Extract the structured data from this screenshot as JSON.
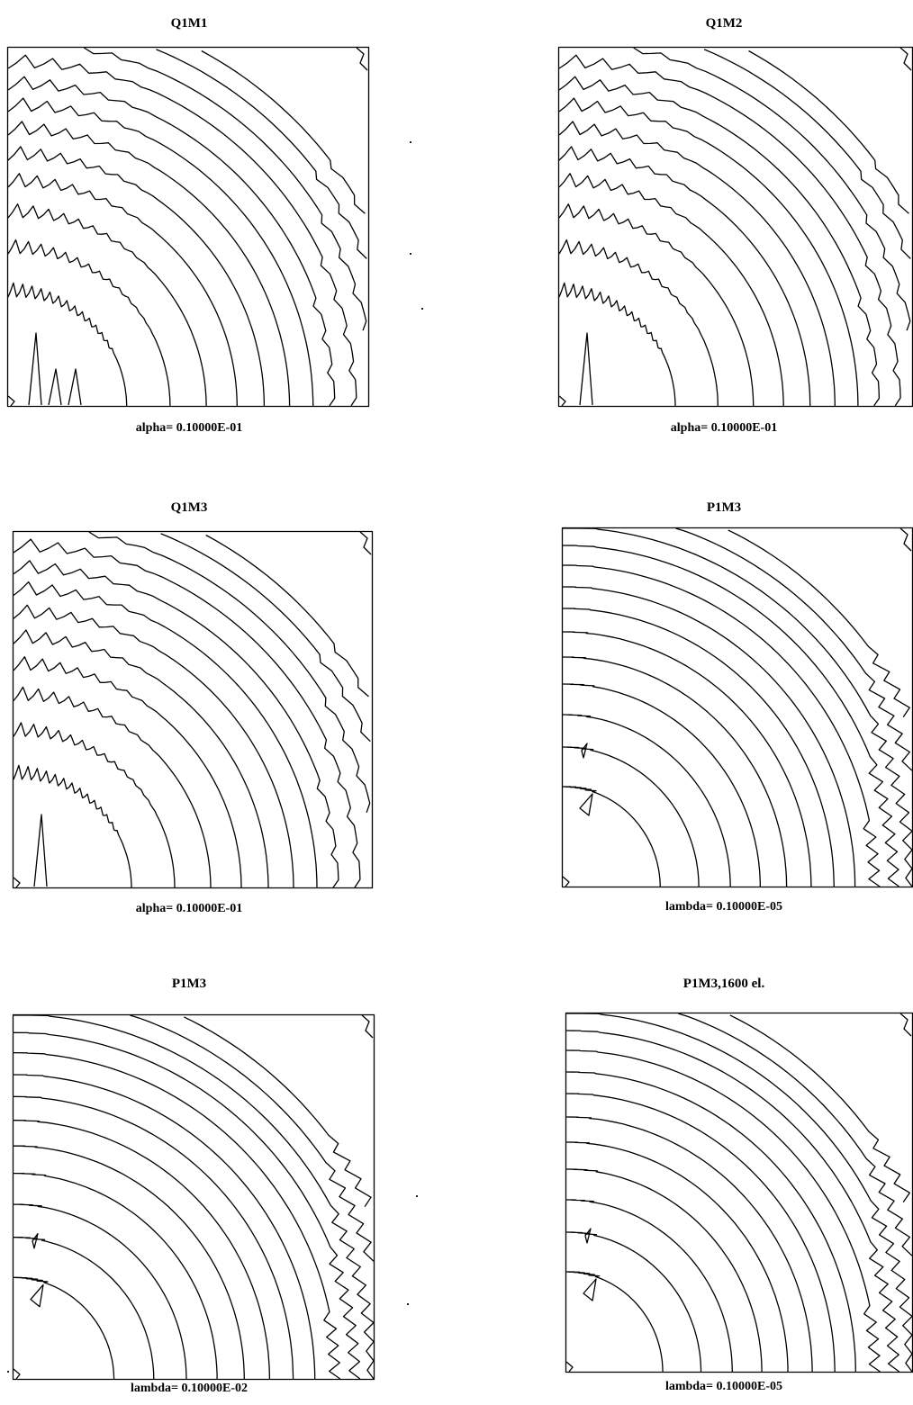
{
  "figure": {
    "panels": [
      {
        "title": "Q1M1",
        "caption": "alpha= 0.10000E-01",
        "style": "q",
        "spike": 3
      },
      {
        "title": "Q1M2",
        "caption": "alpha= 0.10000E-01",
        "style": "q",
        "spike": 1
      },
      {
        "title": "Q1M3",
        "caption": "alpha= 0.10000E-01",
        "style": "q",
        "spike": 1
      },
      {
        "title": "P1M3",
        "caption": "lambda= 0.10000E-05",
        "style": "p",
        "spike": 0
      },
      {
        "title": "P1M3",
        "caption": "lambda= 0.10000E-02",
        "style": "p",
        "spike": 0
      },
      {
        "title": "P1M3,1600 el.",
        "caption": "lambda= 0.10000E-05",
        "style": "p2",
        "spike": 0
      }
    ]
  }
}
